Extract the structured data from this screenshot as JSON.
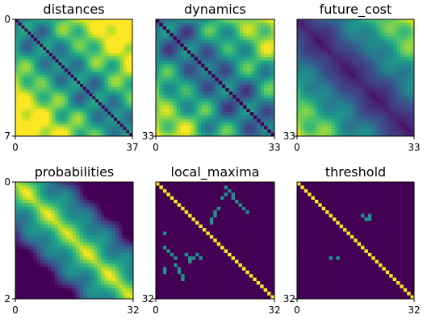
{
  "chart_data": [
    {
      "type": "heatmap",
      "title": "distances",
      "matrix_size": 38,
      "colormap": "viridis",
      "x_ticks": [
        "0",
        "37"
      ],
      "y_ticks": [
        "0",
        "7"
      ],
      "description_of_values": "symmetric distance matrix, zero diagonal, high values near top-right/bottom-left",
      "pattern": "distances",
      "vmin": 0,
      "vmax": 1
    },
    {
      "type": "heatmap",
      "title": "dynamics",
      "matrix_size": 34,
      "colormap": "viridis",
      "x_ticks": [
        "0",
        "33"
      ],
      "y_ticks": [],
      "right_tick": "33",
      "pattern": "dynamics",
      "vmin": 0,
      "vmax": 1
    },
    {
      "type": "heatmap",
      "title": "future_cost",
      "matrix_size": 34,
      "colormap": "viridis",
      "x_ticks": [
        "0",
        "33"
      ],
      "y_ticks": [],
      "right_tick": "33",
      "pattern": "future_cost",
      "vmin": 0,
      "vmax": 1
    },
    {
      "type": "heatmap",
      "title": "probabilities",
      "matrix_size": 33,
      "colormap": "viridis",
      "x_ticks": [
        "0",
        "32"
      ],
      "y_ticks": [
        "0",
        "2"
      ],
      "pattern": "probabilities",
      "vmin": 0,
      "vmax": 1
    },
    {
      "type": "heatmap",
      "title": "local_maxima",
      "matrix_size": 33,
      "colormap": "viridis",
      "x_ticks": [
        "0",
        "32"
      ],
      "y_ticks": [],
      "right_tick": "32",
      "pattern": "binary",
      "vmin": 0,
      "vmax": 1,
      "diagonal": 1,
      "cells": [
        [
          1,
          19
        ],
        [
          2,
          20
        ],
        [
          3,
          19
        ],
        [
          3,
          21
        ],
        [
          4,
          18
        ],
        [
          4,
          21
        ],
        [
          5,
          22
        ],
        [
          6,
          23
        ],
        [
          7,
          17
        ],
        [
          7,
          24
        ],
        [
          8,
          16
        ],
        [
          8,
          25
        ],
        [
          9,
          16
        ],
        [
          10,
          15
        ],
        [
          11,
          15
        ],
        [
          14,
          2
        ],
        [
          18,
          2
        ],
        [
          19,
          3
        ],
        [
          20,
          4
        ],
        [
          21,
          5
        ],
        [
          20,
          8
        ],
        [
          21,
          9
        ],
        [
          22,
          9
        ],
        [
          21,
          10
        ],
        [
          20,
          11
        ],
        [
          21,
          12
        ],
        [
          23,
          5
        ],
        [
          24,
          6
        ],
        [
          25,
          6
        ],
        [
          26,
          7
        ],
        [
          27,
          7
        ],
        [
          24,
          2
        ],
        [
          25,
          2
        ]
      ],
      "cell_value": 0.5
    },
    {
      "type": "heatmap",
      "title": "threshold",
      "matrix_size": 33,
      "colormap": "viridis",
      "x_ticks": [
        "0",
        "32"
      ],
      "y_ticks": [],
      "right_tick": "32",
      "pattern": "binary",
      "vmin": 0,
      "vmax": 1,
      "diagonal": 1,
      "cells": [
        [
          9,
          18
        ],
        [
          10,
          19
        ],
        [
          10,
          20
        ],
        [
          9,
          20
        ],
        [
          21,
          9
        ],
        [
          21,
          11
        ]
      ],
      "cell_value": 0.5
    }
  ]
}
